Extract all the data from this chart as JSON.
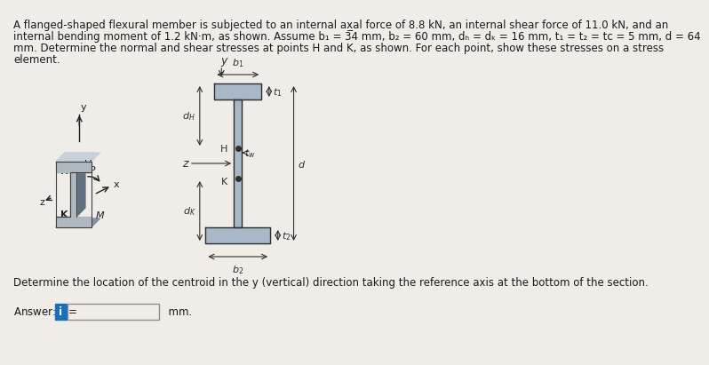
{
  "title_text": "A flanged-shaped flexural member is subjected to an internal ax̲al force of 8.8 kN, an internal shear force of 11.0 kN, and an\ninternal bending moment of 1.2 kN·m, as shown. Assume b₁ = 34 mm, b₂ = 60 mm, dₕ = dₖ = 16 mm, t₁ = t₂ = tᴄ = 5 mm, d = 64\nmm. Determine the normal and shear stresses at points H and K, as shown. For each point, show these stresses on a stress\nelement.",
  "question_text": "Determine the location of the centroid in the y (vertical) direction taking the reference axis at the bottom of the section.",
  "answer_text": "Answer: ȳ =",
  "mm_text": "mm.",
  "bg_color": "#f0ede8",
  "text_color": "#1a1a1a",
  "title_fontsize": 8.5,
  "question_fontsize": 8.5,
  "answer_fontsize": 8.5
}
